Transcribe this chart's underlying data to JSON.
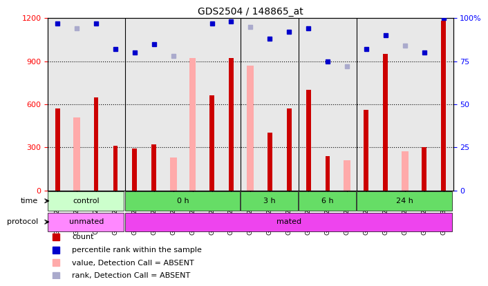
{
  "title": "GDS2504 / 148865_at",
  "samples": [
    "GSM112931",
    "GSM112935",
    "GSM112942",
    "GSM112943",
    "GSM112945",
    "GSM112946",
    "GSM112947",
    "GSM112948",
    "GSM112949",
    "GSM112950",
    "GSM112952",
    "GSM112962",
    "GSM112963",
    "GSM112964",
    "GSM112965",
    "GSM112967",
    "GSM112968",
    "GSM112970",
    "GSM112971",
    "GSM112972",
    "GSM113345"
  ],
  "values": [
    570,
    null,
    650,
    310,
    290,
    320,
    null,
    null,
    660,
    920,
    null,
    400,
    570,
    700,
    240,
    null,
    560,
    950,
    null,
    300,
    1180
  ],
  "absent_values": [
    null,
    510,
    null,
    null,
    null,
    null,
    230,
    920,
    null,
    null,
    870,
    null,
    null,
    null,
    null,
    210,
    null,
    null,
    270,
    null,
    null
  ],
  "ranks": [
    97,
    null,
    97,
    82,
    80,
    85,
    null,
    null,
    97,
    98,
    null,
    88,
    92,
    94,
    75,
    null,
    82,
    90,
    null,
    80,
    100
  ],
  "absent_ranks": [
    null,
    94,
    null,
    null,
    null,
    null,
    78,
    null,
    null,
    null,
    95,
    null,
    null,
    null,
    null,
    72,
    null,
    null,
    84,
    null,
    null
  ],
  "ylim": [
    0,
    1200
  ],
  "yticks": [
    0,
    300,
    600,
    900,
    1200
  ],
  "y2lim": [
    0,
    100
  ],
  "y2ticks": [
    0,
    25,
    50,
    75,
    100
  ],
  "bar_color": "#cc0000",
  "absent_bar_color": "#ffaaaa",
  "rank_color": "#0000cc",
  "absent_rank_color": "#aaaacc",
  "bg_color": "#cccccc",
  "plot_bg": "#ffffff",
  "groups": {
    "time": [
      {
        "label": "control",
        "start": 0,
        "end": 4,
        "color": "#ccffcc"
      },
      {
        "label": "0 h",
        "start": 4,
        "end": 10,
        "color": "#88ee88"
      },
      {
        "label": "3 h",
        "start": 10,
        "end": 13,
        "color": "#88ee88"
      },
      {
        "label": "6 h",
        "start": 13,
        "end": 16,
        "color": "#88ee88"
      },
      {
        "label": "24 h",
        "start": 16,
        "end": 21,
        "color": "#88ee88"
      }
    ],
    "protocol": [
      {
        "label": "unmated",
        "start": 0,
        "end": 4,
        "color": "#ff88ff"
      },
      {
        "label": "mated",
        "start": 4,
        "end": 21,
        "color": "#ff44ff"
      }
    ]
  },
  "legend_items": [
    {
      "color": "#cc0000",
      "marker": "s",
      "label": "count"
    },
    {
      "color": "#0000cc",
      "marker": "s",
      "label": "percentile rank within the sample"
    },
    {
      "color": "#ffaaaa",
      "marker": "s",
      "label": "value, Detection Call = ABSENT"
    },
    {
      "color": "#aaaacc",
      "marker": "s",
      "label": "rank, Detection Call = ABSENT"
    }
  ]
}
